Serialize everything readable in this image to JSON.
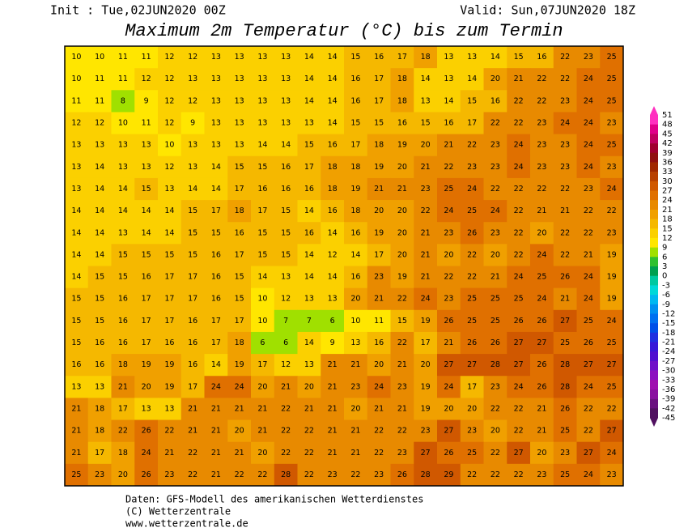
{
  "header": {
    "init": "Init : Tue,02JUN2020 00Z",
    "valid": "Valid: Sun,07JUN2020 18Z",
    "title": "Maximum 2m Temperatur (°C) bis zum Termin"
  },
  "colorbar": {
    "levels": [
      51,
      48,
      45,
      42,
      39,
      36,
      33,
      30,
      27,
      24,
      21,
      18,
      15,
      12,
      9,
      6,
      3,
      0,
      -3,
      -6,
      -9,
      -12,
      -15,
      -18,
      -21,
      -24,
      -27,
      -30,
      -33,
      -36,
      -39,
      -42,
      -45
    ],
    "colors": [
      "#ff30c0",
      "#e0008a",
      "#c00060",
      "#a00030",
      "#901010",
      "#a02800",
      "#b84000",
      "#d05800",
      "#e07000",
      "#e88a00",
      "#f0a000",
      "#f5b800",
      "#fbd000",
      "#ffe600",
      "#a0e000",
      "#30c030",
      "#00a050",
      "#00c8a0",
      "#00d8d8",
      "#00b8f0",
      "#0090f0",
      "#0070f0",
      "#0050e8",
      "#2030e0",
      "#3818d8",
      "#5010d0",
      "#7010c8",
      "#8c10c0",
      "#a010b0",
      "#8a10a0",
      "#6a1080",
      "#501060"
    ]
  },
  "grid": {
    "rows": [
      [
        10,
        10,
        11,
        11,
        12,
        12,
        13,
        13,
        13,
        13,
        14,
        14,
        15,
        16,
        17,
        18,
        13,
        13,
        14,
        15,
        16,
        22,
        23,
        25
      ],
      [
        10,
        11,
        11,
        12,
        12,
        13,
        13,
        13,
        13,
        13,
        14,
        14,
        16,
        17,
        18,
        14,
        13,
        14,
        20,
        21,
        22,
        22,
        24,
        25
      ],
      [
        11,
        11,
        8,
        9,
        12,
        12,
        13,
        13,
        13,
        13,
        14,
        14,
        16,
        17,
        18,
        13,
        14,
        15,
        16,
        22,
        22,
        23,
        24,
        25
      ],
      [
        12,
        12,
        10,
        11,
        12,
        9,
        13,
        13,
        13,
        13,
        13,
        14,
        15,
        15,
        16,
        15,
        16,
        17,
        22,
        22,
        23,
        24,
        24,
        23
      ],
      [
        13,
        13,
        13,
        13,
        10,
        13,
        13,
        13,
        14,
        14,
        15,
        16,
        17,
        18,
        19,
        20,
        21,
        22,
        23,
        24,
        23,
        23,
        24,
        25
      ],
      [
        13,
        14,
        13,
        13,
        12,
        13,
        14,
        15,
        15,
        16,
        17,
        18,
        18,
        19,
        20,
        21,
        22,
        23,
        23,
        24,
        23,
        23,
        24,
        23
      ],
      [
        13,
        14,
        14,
        15,
        13,
        14,
        14,
        17,
        16,
        16,
        16,
        18,
        19,
        21,
        21,
        23,
        25,
        24,
        22,
        22,
        22,
        22,
        23,
        24
      ],
      [
        14,
        14,
        14,
        14,
        14,
        15,
        17,
        18,
        17,
        15,
        14,
        16,
        18,
        20,
        20,
        22,
        24,
        25,
        24,
        22,
        21,
        21,
        22,
        22
      ],
      [
        14,
        14,
        13,
        14,
        14,
        15,
        15,
        16,
        15,
        15,
        16,
        14,
        16,
        19,
        20,
        21,
        23,
        26,
        23,
        22,
        20,
        22,
        22,
        23
      ],
      [
        14,
        14,
        15,
        15,
        15,
        15,
        16,
        17,
        15,
        15,
        14,
        12,
        14,
        17,
        20,
        21,
        20,
        22,
        20,
        22,
        24,
        22,
        21,
        19
      ],
      [
        14,
        15,
        15,
        16,
        17,
        17,
        16,
        15,
        14,
        13,
        14,
        14,
        16,
        23,
        19,
        21,
        22,
        22,
        21,
        24,
        25,
        26,
        24,
        19
      ],
      [
        15,
        15,
        16,
        17,
        17,
        17,
        16,
        15,
        10,
        12,
        13,
        13,
        20,
        21,
        22,
        24,
        23,
        25,
        25,
        25,
        24,
        21,
        24,
        19
      ],
      [
        15,
        15,
        16,
        17,
        17,
        16,
        17,
        17,
        10,
        7,
        7,
        6,
        10,
        11,
        15,
        19,
        26,
        25,
        25,
        26,
        26,
        27,
        25,
        24
      ],
      [
        15,
        16,
        16,
        17,
        16,
        16,
        17,
        18,
        6,
        6,
        14,
        9,
        13,
        16,
        22,
        17,
        21,
        26,
        26,
        27,
        27,
        25,
        26,
        25
      ],
      [
        16,
        16,
        18,
        19,
        19,
        16,
        14,
        19,
        17,
        12,
        13,
        21,
        21,
        20,
        21,
        20,
        27,
        27,
        28,
        27,
        26,
        28,
        27,
        27
      ],
      [
        13,
        13,
        21,
        20,
        19,
        17,
        24,
        24,
        20,
        21,
        20,
        21,
        23,
        24,
        23,
        19,
        24,
        17,
        23,
        24,
        26,
        28,
        24,
        25
      ],
      [
        21,
        18,
        17,
        13,
        13,
        21,
        21,
        21,
        21,
        22,
        21,
        21,
        20,
        21,
        21,
        19,
        20,
        20,
        22,
        22,
        21,
        26,
        22,
        22
      ],
      [
        21,
        18,
        22,
        26,
        22,
        21,
        21,
        20,
        21,
        22,
        22,
        21,
        21,
        22,
        22,
        23,
        27,
        23,
        20,
        22,
        21,
        25,
        22,
        27
      ],
      [
        21,
        17,
        18,
        24,
        21,
        22,
        21,
        21,
        20,
        22,
        22,
        21,
        21,
        22,
        23,
        27,
        26,
        25,
        22,
        27,
        20,
        23,
        27,
        24
      ],
      [
        25,
        23,
        20,
        26,
        23,
        22,
        21,
        22,
        22,
        28,
        22,
        23,
        22,
        23,
        26,
        28,
        29,
        22,
        22,
        22,
        23,
        25,
        24,
        23
      ]
    ]
  },
  "footer": [
    "Daten: GFS-Modell des amerikanischen Wetterdienstes",
    "(C) Wetterzentrale",
    "www.wetterzentrale.de"
  ]
}
